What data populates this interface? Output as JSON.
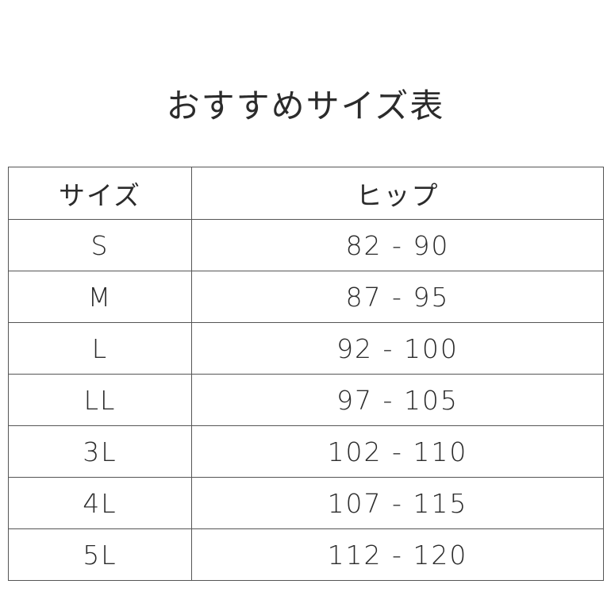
{
  "title": "おすすめサイズ表",
  "table": {
    "headers": [
      "サイズ",
      "ヒップ"
    ],
    "rows": [
      [
        "S",
        "82 - 90"
      ],
      [
        "M",
        "87 - 95"
      ],
      [
        "L",
        "92 - 100"
      ],
      [
        "LL",
        "97 - 105"
      ],
      [
        "3L",
        "102 - 110"
      ],
      [
        "4L",
        "107 - 115"
      ],
      [
        "5L",
        "112 - 120"
      ]
    ]
  }
}
